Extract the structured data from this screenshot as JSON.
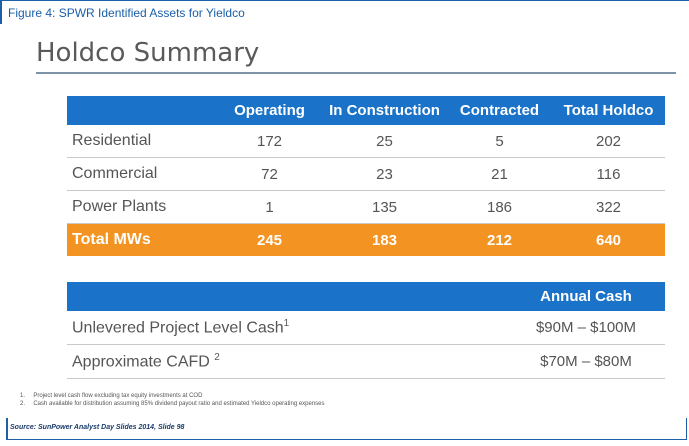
{
  "figure_caption": "Figure 4: SPWR Identified Assets for Yieldco",
  "title": "Holdco Summary",
  "holdco_table": {
    "headers": [
      "",
      "Operating",
      "In Construction",
      "Contracted",
      "Total Holdco"
    ],
    "rows": [
      {
        "label": "Residential",
        "values": [
          "172",
          "25",
          "5",
          "202"
        ]
      },
      {
        "label": "Commercial",
        "values": [
          "72",
          "23",
          "21",
          "116"
        ]
      },
      {
        "label": "Power Plants",
        "values": [
          "1",
          "135",
          "186",
          "322"
        ]
      }
    ],
    "total": {
      "label": "Total MWs",
      "values": [
        "245",
        "183",
        "212",
        "640"
      ]
    }
  },
  "cash_table": {
    "header": "Annual Cash",
    "rows": [
      {
        "label": "Unlevered Project Level Cash",
        "sup": "1",
        "value": "$90M – $100M"
      },
      {
        "label": "Approximate CAFD",
        "sup": "2",
        "value": "$70M – $80M"
      }
    ]
  },
  "footnotes": [
    "1.     Project level cash flow excluding tax equity investments at COD",
    "2.     Cash available for distribution assuming 85% dividend payout ratio and estimated Yieldco operating expenses"
  ],
  "source": "Source: SunPower Analyst Day Slides 2014, Slide 98",
  "colors": {
    "header_blue": "#1a73c8",
    "total_orange": "#f39321",
    "caption_blue": "#1a5ea8"
  }
}
